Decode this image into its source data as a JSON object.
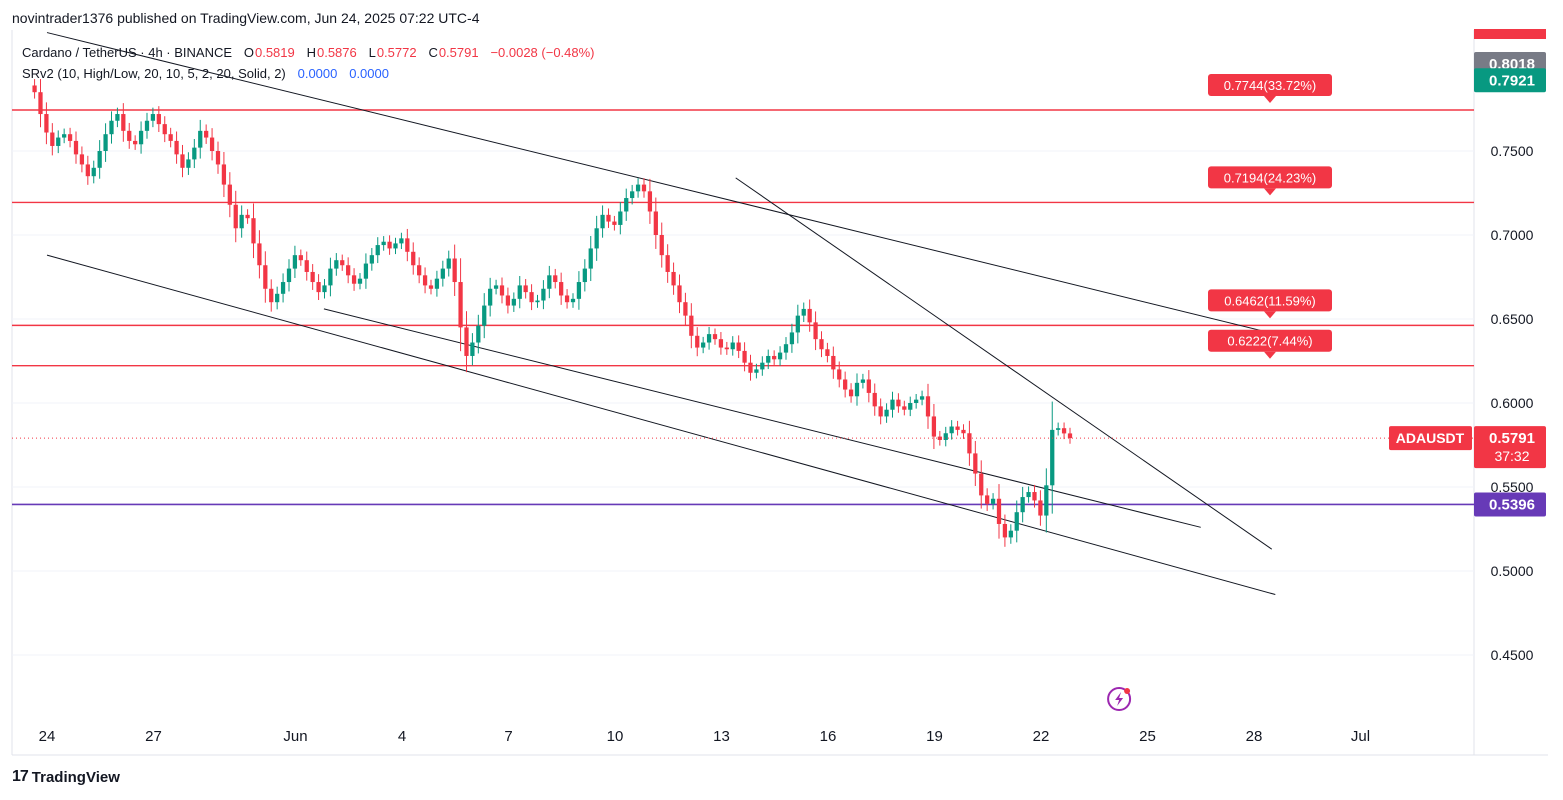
{
  "publisher": "novintrader1376 published on TradingView.com, Jun 24, 2025 07:22 UTC-4",
  "legend": {
    "symbol": "Cardano / TetherUS · 4h · BINANCE",
    "open_label": "O",
    "open": "0.5819",
    "high_label": "H",
    "high": "0.5876",
    "low_label": "L",
    "low": "0.5772",
    "close_label": "C",
    "close": "0.5791",
    "change": "−0.0028 (−0.48%)",
    "indicator": "SRv2 (10, High/Low, 20, 10, 5, 2, 20, Solid, 2)",
    "indicator_v1": "0.0000",
    "indicator_v2": "0.0000"
  },
  "footer": {
    "brand": "TradingView",
    "icon": "tradingview-logo-icon"
  },
  "colors": {
    "up": "#089981",
    "down": "#f23645",
    "level": "#f23645",
    "support": "#673ab7",
    "trendline": "#131722",
    "grid": "#f0f3fa"
  },
  "chart_data": {
    "type": "candlestick",
    "symbol": "ADAUSDT",
    "timeframe": "4h",
    "y_axis": {
      "range": [
        0.43,
        0.81
      ],
      "ticks": [
        0.75,
        0.7,
        0.65,
        0.6,
        0.55,
        0.5,
        0.45
      ],
      "tick_labels": [
        "0.7500",
        "0.7000",
        "0.6500",
        "0.6000",
        "0.5500",
        "0.5000",
        "0.4500"
      ]
    },
    "x_axis": {
      "ticks": [
        {
          "day": 0,
          "label": "24"
        },
        {
          "day": 3,
          "label": "27"
        },
        {
          "day": 7,
          "label": "Jun"
        },
        {
          "day": 10,
          "label": "4"
        },
        {
          "day": 13,
          "label": "7"
        },
        {
          "day": 16,
          "label": "10"
        },
        {
          "day": 19,
          "label": "13"
        },
        {
          "day": 22,
          "label": "16"
        },
        {
          "day": 25,
          "label": "19"
        },
        {
          "day": 28,
          "label": "22"
        },
        {
          "day": 31,
          "label": "25"
        },
        {
          "day": 34,
          "label": "28"
        },
        {
          "day": 37,
          "label": "Jul"
        }
      ]
    },
    "price_labels": [
      {
        "value": 0.8018,
        "text": "0.8018",
        "color": "#787b86"
      },
      {
        "value": 0.7921,
        "text": "0.7921",
        "color": "#089981"
      },
      {
        "value": 0.5791,
        "text": "0.5791",
        "color": "#f23645",
        "name": "ADAUSDT",
        "countdown": "37:32"
      },
      {
        "value": 0.5396,
        "text": "0.5396",
        "color": "#673ab7"
      }
    ],
    "resistance_levels": [
      {
        "value": 0.7744,
        "label": "0.7744(33.72%)"
      },
      {
        "value": 0.7194,
        "label": "0.7194(24.23%)"
      },
      {
        "value": 0.6462,
        "label": "0.6462(11.59%)"
      },
      {
        "value": 0.6222,
        "label": "0.6222(7.44%)"
      }
    ],
    "support_level": 0.5396,
    "last_price": 0.5791,
    "trendlines": [
      {
        "from": {
          "day": 0,
          "price": 0.8205
        },
        "to": {
          "day": 34.8,
          "price": 0.64
        }
      },
      {
        "from": {
          "day": 19.4,
          "price": 0.734
        },
        "to": {
          "day": 34.5,
          "price": 0.513
        }
      },
      {
        "from": {
          "day": 0,
          "price": 0.688
        },
        "to": {
          "day": 34.6,
          "price": 0.486
        }
      },
      {
        "from": {
          "day": 7.8,
          "price": 0.656
        },
        "to": {
          "day": 32.5,
          "price": 0.526
        }
      }
    ],
    "closes": [
      0.785,
      0.772,
      0.761,
      0.753,
      0.758,
      0.76,
      0.756,
      0.748,
      0.742,
      0.735,
      0.74,
      0.75,
      0.76,
      0.768,
      0.772,
      0.762,
      0.756,
      0.754,
      0.762,
      0.768,
      0.772,
      0.766,
      0.76,
      0.756,
      0.748,
      0.74,
      0.745,
      0.752,
      0.762,
      0.758,
      0.75,
      0.742,
      0.73,
      0.718,
      0.704,
      0.712,
      0.71,
      0.695,
      0.682,
      0.668,
      0.66,
      0.665,
      0.672,
      0.68,
      0.688,
      0.685,
      0.678,
      0.672,
      0.666,
      0.67,
      0.68,
      0.685,
      0.682,
      0.676,
      0.671,
      0.674,
      0.683,
      0.688,
      0.694,
      0.696,
      0.692,
      0.695,
      0.698,
      0.69,
      0.682,
      0.676,
      0.67,
      0.668,
      0.674,
      0.68,
      0.686,
      0.672,
      0.645,
      0.628,
      0.636,
      0.646,
      0.658,
      0.668,
      0.67,
      0.664,
      0.658,
      0.662,
      0.67,
      0.666,
      0.66,
      0.661,
      0.668,
      0.676,
      0.672,
      0.664,
      0.66,
      0.662,
      0.672,
      0.68,
      0.692,
      0.704,
      0.712,
      0.708,
      0.706,
      0.714,
      0.722,
      0.726,
      0.73,
      0.726,
      0.714,
      0.7,
      0.688,
      0.678,
      0.67,
      0.66,
      0.652,
      0.64,
      0.633,
      0.636,
      0.641,
      0.638,
      0.633,
      0.632,
      0.636,
      0.631,
      0.624,
      0.618,
      0.62,
      0.624,
      0.628,
      0.626,
      0.63,
      0.635,
      0.642,
      0.652,
      0.656,
      0.648,
      0.638,
      0.632,
      0.628,
      0.62,
      0.614,
      0.608,
      0.604,
      0.612,
      0.614,
      0.606,
      0.598,
      0.592,
      0.596,
      0.602,
      0.598,
      0.596,
      0.6,
      0.602,
      0.604,
      0.592,
      0.58,
      0.578,
      0.582,
      0.586,
      0.584,
      0.582,
      0.57,
      0.558,
      0.545,
      0.54,
      0.543,
      0.528,
      0.52,
      0.524,
      0.535,
      0.544,
      0.547,
      0.542,
      0.533,
      0.551,
      0.584,
      0.585,
      0.5819,
      0.5791
    ],
    "candles_per_day": 6,
    "start_day": -0.35
  }
}
